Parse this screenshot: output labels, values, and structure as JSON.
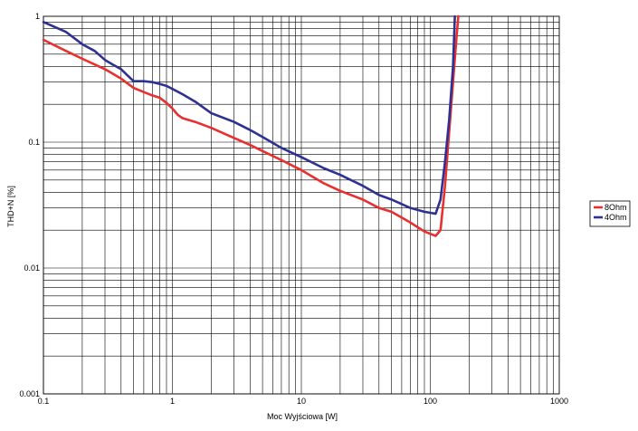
{
  "chart_data": {
    "type": "line",
    "title": "",
    "xlabel": "Moc Wyjściowa [W]",
    "ylabel": "THD+N [%]",
    "x_scale": "log",
    "y_scale": "log",
    "xlim": [
      0.1,
      1000
    ],
    "ylim": [
      0.001,
      1
    ],
    "x_ticks": [
      {
        "value": 0.1,
        "label": "0.1"
      },
      {
        "value": 1,
        "label": "1"
      },
      {
        "value": 10,
        "label": "10"
      },
      {
        "value": 100,
        "label": "100"
      },
      {
        "value": 1000,
        "label": "1000"
      }
    ],
    "y_ticks": [
      {
        "value": 1,
        "label": "1"
      },
      {
        "value": 0.1,
        "label": "0.1"
      },
      {
        "value": 0.01,
        "label": "0.01"
      },
      {
        "value": 0.001,
        "label": "0.001"
      }
    ],
    "grid": true,
    "legend_position": "right",
    "series": [
      {
        "name": "8Ohm",
        "color": "#e8302e",
        "x": [
          0.1,
          0.15,
          0.2,
          0.3,
          0.4,
          0.5,
          0.6,
          0.7,
          0.8,
          0.9,
          1.0,
          1.1,
          1.2,
          1.5,
          2,
          3,
          4,
          5,
          7,
          10,
          15,
          20,
          30,
          40,
          50,
          70,
          90,
          110,
          120,
          130,
          140,
          150,
          160,
          165
        ],
        "y": [
          0.65,
          0.53,
          0.46,
          0.38,
          0.32,
          0.27,
          0.25,
          0.235,
          0.225,
          0.205,
          0.185,
          0.165,
          0.155,
          0.145,
          0.13,
          0.108,
          0.095,
          0.085,
          0.072,
          0.06,
          0.047,
          0.041,
          0.035,
          0.03,
          0.028,
          0.023,
          0.0195,
          0.018,
          0.02,
          0.045,
          0.12,
          0.3,
          0.7,
          1.0
        ]
      },
      {
        "name": "4Ohm",
        "color": "#2e3192",
        "x": [
          0.1,
          0.15,
          0.2,
          0.25,
          0.3,
          0.35,
          0.4,
          0.5,
          0.6,
          0.7,
          0.8,
          0.9,
          1.0,
          1.2,
          1.5,
          2,
          3,
          4,
          5,
          7,
          10,
          15,
          20,
          30,
          40,
          50,
          70,
          90,
          110,
          120,
          130,
          140,
          150,
          155
        ],
        "y": [
          0.9,
          0.75,
          0.6,
          0.53,
          0.45,
          0.41,
          0.38,
          0.305,
          0.305,
          0.3,
          0.29,
          0.28,
          0.265,
          0.24,
          0.21,
          0.17,
          0.145,
          0.125,
          0.11,
          0.09,
          0.076,
          0.062,
          0.055,
          0.045,
          0.038,
          0.035,
          0.03,
          0.028,
          0.027,
          0.035,
          0.07,
          0.15,
          0.4,
          1.0
        ]
      }
    ]
  }
}
